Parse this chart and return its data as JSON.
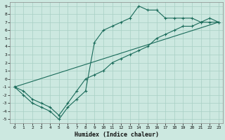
{
  "title": "",
  "xlabel": "Humidex (Indice chaleur)",
  "ylabel": "",
  "xlim": [
    -0.5,
    23.5
  ],
  "ylim": [
    -5.5,
    9.5
  ],
  "xticks": [
    0,
    1,
    2,
    3,
    4,
    5,
    6,
    7,
    8,
    9,
    10,
    11,
    12,
    13,
    14,
    15,
    16,
    17,
    18,
    19,
    20,
    21,
    22,
    23
  ],
  "yticks": [
    -5,
    -4,
    -3,
    -2,
    -1,
    0,
    1,
    2,
    3,
    4,
    5,
    6,
    7,
    8,
    9
  ],
  "bg_color": "#cce8e0",
  "line_color": "#1a6b5a",
  "grid_color": "#a8cfc4",
  "line1_x": [
    0,
    1,
    2,
    3,
    4,
    5,
    6,
    7,
    8,
    9,
    10,
    11,
    12,
    13,
    14,
    15,
    16,
    17,
    18,
    19,
    20,
    21,
    22,
    23
  ],
  "line1_y": [
    -1,
    -2,
    -3,
    -3.5,
    -4,
    -5,
    -3.5,
    -2.5,
    -1.5,
    4.5,
    6,
    6.5,
    7,
    7.5,
    9,
    8.5,
    8.5,
    7.5,
    7.5,
    7.5,
    7.5,
    7,
    7.5,
    7
  ],
  "line2_x": [
    0,
    1,
    2,
    3,
    4,
    5,
    6,
    7,
    8,
    9,
    10,
    11,
    12,
    13,
    14,
    15,
    16,
    17,
    18,
    19,
    20,
    21,
    22,
    23
  ],
  "line2_y": [
    -1,
    -1.5,
    -2.5,
    -3,
    -3.5,
    -4.5,
    -3,
    -1.5,
    0,
    0.5,
    1,
    2,
    2.5,
    3,
    3.5,
    4,
    5,
    5.5,
    6,
    6.5,
    6.5,
    7,
    7,
    7
  ],
  "line3_x": [
    0,
    23
  ],
  "line3_y": [
    -1,
    7
  ]
}
